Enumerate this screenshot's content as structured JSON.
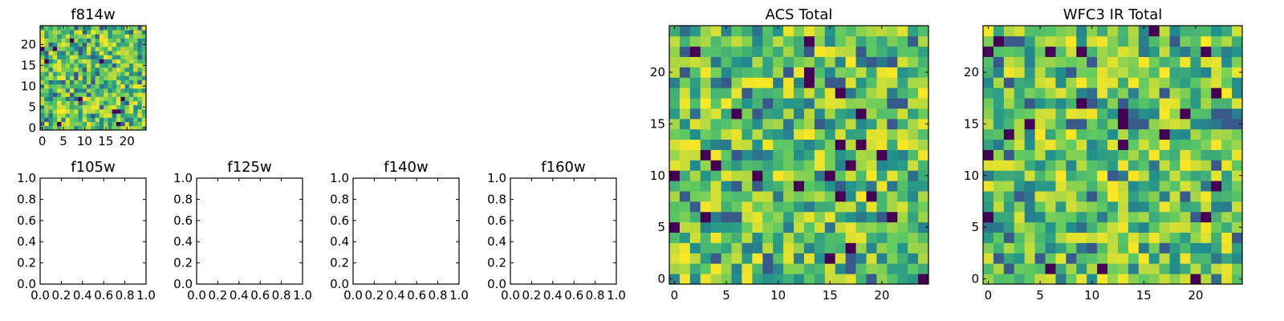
{
  "chart_data": [
    {
      "type": "heatmap",
      "title": "f814w",
      "grid_size": 25,
      "colormap": "viridis",
      "xlim": [
        -0.5,
        24.5
      ],
      "ylim": [
        -0.5,
        24.5
      ],
      "xticks": [
        0,
        5,
        10,
        15,
        20
      ],
      "yticks": [
        0,
        5,
        10,
        15,
        20
      ],
      "values_note": "random noise field; 25x25 cells",
      "seed": 17
    },
    {
      "type": "heatmap",
      "title": "f105w",
      "empty": true,
      "xlim": [
        0,
        1
      ],
      "ylim": [
        0,
        1
      ],
      "xticks": [
        "0.0",
        "0.2",
        "0.4",
        "0.6",
        "0.8",
        "1.0"
      ],
      "yticks": [
        "0.0",
        "0.2",
        "0.4",
        "0.6",
        "0.8",
        "1.0"
      ]
    },
    {
      "type": "heatmap",
      "title": "f125w",
      "empty": true,
      "xlim": [
        0,
        1
      ],
      "ylim": [
        0,
        1
      ],
      "xticks": [
        "0.0",
        "0.2",
        "0.4",
        "0.6",
        "0.8",
        "1.0"
      ],
      "yticks": [
        "0.0",
        "0.2",
        "0.4",
        "0.6",
        "0.8",
        "1.0"
      ]
    },
    {
      "type": "heatmap",
      "title": "f140w",
      "empty": true,
      "xlim": [
        0,
        1
      ],
      "ylim": [
        0,
        1
      ],
      "xticks": [
        "0.0",
        "0.2",
        "0.4",
        "0.6",
        "0.8",
        "1.0"
      ],
      "yticks": [
        "0.0",
        "0.2",
        "0.4",
        "0.6",
        "0.8",
        "1.0"
      ]
    },
    {
      "type": "heatmap",
      "title": "f160w",
      "empty": true,
      "xlim": [
        0,
        1
      ],
      "ylim": [
        0,
        1
      ],
      "xticks": [
        "0.0",
        "0.2",
        "0.4",
        "0.6",
        "0.8",
        "1.0"
      ],
      "yticks": [
        "0.0",
        "0.2",
        "0.4",
        "0.6",
        "0.8",
        "1.0"
      ]
    },
    {
      "type": "heatmap",
      "title": "ACS Total",
      "grid_size": 25,
      "colormap": "viridis",
      "xlim": [
        -0.5,
        24.5
      ],
      "ylim": [
        -0.5,
        24.5
      ],
      "xticks": [
        0,
        5,
        10,
        15,
        20
      ],
      "yticks": [
        0,
        5,
        10,
        15,
        20
      ],
      "seed": 53
    },
    {
      "type": "heatmap",
      "title": "WFC3 IR Total",
      "grid_size": 25,
      "colormap": "viridis",
      "xlim": [
        -0.5,
        24.5
      ],
      "ylim": [
        -0.5,
        24.5
      ],
      "xticks": [
        0,
        5,
        10,
        15,
        20
      ],
      "yticks": [
        0,
        5,
        10,
        15,
        20
      ],
      "seed": 91
    }
  ]
}
